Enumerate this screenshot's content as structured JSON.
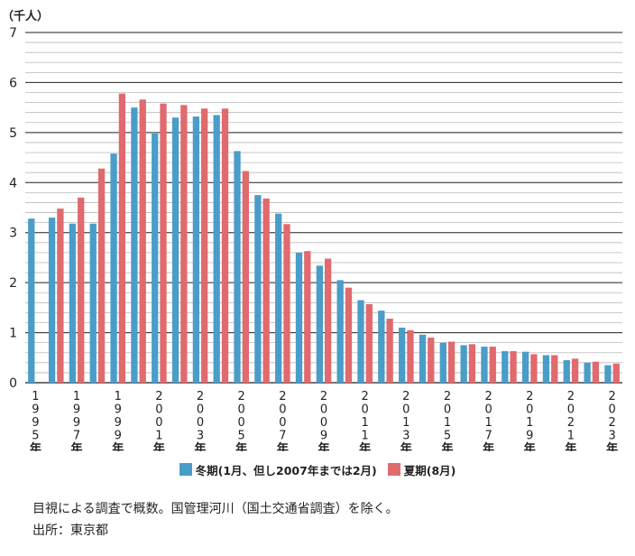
{
  "chart_data": {
    "type": "bar",
    "unit_label": "（千人）",
    "ylim": [
      0,
      7
    ],
    "yticks": [
      0,
      1,
      2,
      3,
      4,
      5,
      6,
      7
    ],
    "grid": true,
    "legend_position": "bottom",
    "categories": [
      "1995",
      "1996",
      "1997",
      "1998",
      "1999",
      "2000",
      "2001",
      "2002",
      "2003",
      "2004",
      "2005",
      "2006",
      "2007",
      "2008",
      "2009",
      "2010",
      "2011",
      "2012",
      "2013",
      "2014",
      "2015",
      "2016",
      "2017",
      "2018",
      "2019",
      "2020",
      "2021",
      "2022",
      "2023"
    ],
    "year_labels": [
      {
        "index": 0,
        "chars": [
          "1",
          "9",
          "9",
          "5",
          "年"
        ]
      },
      {
        "index": 2,
        "chars": [
          "1",
          "9",
          "9",
          "7",
          "年"
        ]
      },
      {
        "index": 4,
        "chars": [
          "1",
          "9",
          "9",
          "9",
          "年"
        ]
      },
      {
        "index": 6,
        "chars": [
          "2",
          "0",
          "0",
          "1",
          "年"
        ]
      },
      {
        "index": 8,
        "chars": [
          "2",
          "0",
          "0",
          "3",
          "年"
        ]
      },
      {
        "index": 10,
        "chars": [
          "2",
          "0",
          "0",
          "5",
          "年"
        ]
      },
      {
        "index": 12,
        "chars": [
          "2",
          "0",
          "0",
          "7",
          "年"
        ]
      },
      {
        "index": 14,
        "chars": [
          "2",
          "0",
          "0",
          "9",
          "年"
        ]
      },
      {
        "index": 16,
        "chars": [
          "2",
          "0",
          "1",
          "1",
          "年"
        ]
      },
      {
        "index": 18,
        "chars": [
          "2",
          "0",
          "1",
          "3",
          "年"
        ]
      },
      {
        "index": 20,
        "chars": [
          "2",
          "0",
          "1",
          "5",
          "年"
        ]
      },
      {
        "index": 22,
        "chars": [
          "2",
          "0",
          "1",
          "7",
          "年"
        ]
      },
      {
        "index": 24,
        "chars": [
          "2",
          "0",
          "1",
          "9",
          "年"
        ]
      },
      {
        "index": 26,
        "chars": [
          "2",
          "0",
          "2",
          "1",
          "年"
        ]
      },
      {
        "index": 28,
        "chars": [
          "2",
          "0",
          "2",
          "3",
          "年"
        ]
      }
    ],
    "series": [
      {
        "name": "冬期(1月、但し2007年までは2月)",
        "color": "#4a9dc9",
        "values": [
          3.28,
          3.3,
          3.18,
          3.18,
          4.58,
          5.5,
          4.98,
          5.3,
          5.32,
          5.35,
          4.63,
          3.75,
          3.38,
          2.6,
          2.34,
          2.05,
          1.65,
          1.44,
          1.1,
          0.96,
          0.8,
          0.75,
          0.72,
          0.63,
          0.62,
          0.55,
          0.45,
          0.4,
          0.35
        ]
      },
      {
        "name": "夏期(8月)",
        "color": "#e06a6e",
        "values": [
          null,
          3.48,
          3.7,
          4.28,
          5.78,
          5.66,
          5.58,
          5.55,
          5.48,
          5.48,
          4.23,
          3.68,
          3.17,
          2.63,
          2.48,
          1.9,
          1.57,
          1.28,
          1.05,
          0.9,
          0.82,
          0.77,
          0.72,
          0.63,
          0.57,
          0.55,
          0.48,
          0.42,
          0.38
        ]
      }
    ]
  },
  "footer": {
    "note": "目視による調査で概数。国管理河川（国土交通省調査）を除く。",
    "source": "出所：東京都"
  }
}
